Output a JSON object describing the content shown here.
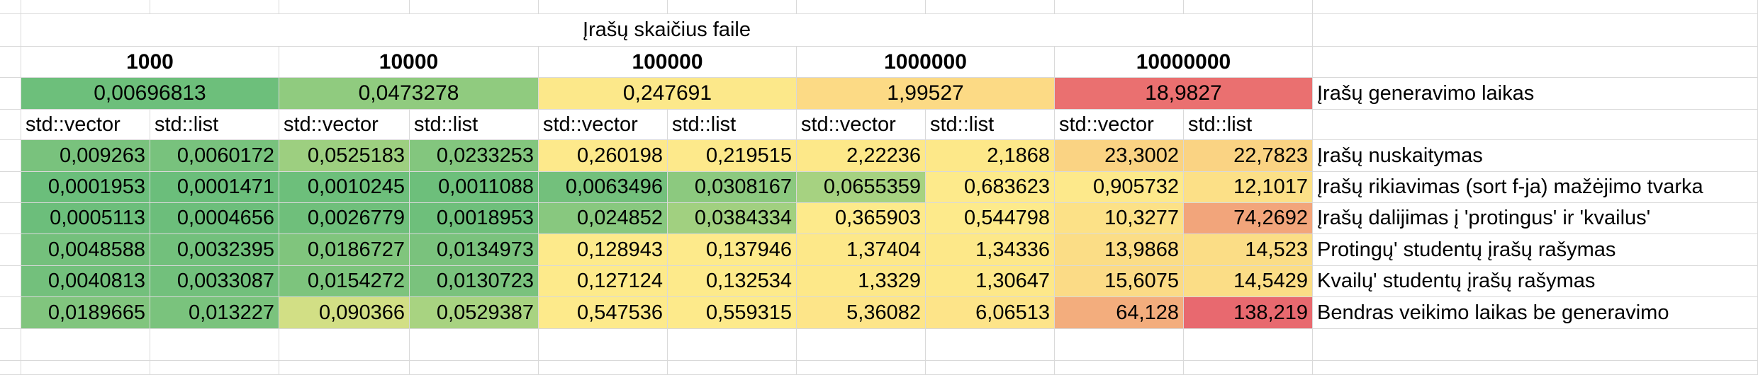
{
  "title": "Įrašų skaičius faile",
  "sizes": [
    "1000",
    "10000",
    "100000",
    "1000000",
    "10000000"
  ],
  "generation": {
    "label": "Įrašų generavimo laikas",
    "values": [
      "0,00696813",
      "0,0473278",
      "0,247691",
      "1,99527",
      "18,9827"
    ],
    "colors": [
      "#6dbf7b",
      "#90cb7f",
      "#fce88a",
      "#fcda85",
      "#ea7070"
    ]
  },
  "container_headers": [
    "std::vector",
    "std::list",
    "std::vector",
    "std::list",
    "std::vector",
    "std::list",
    "std::vector",
    "std::list",
    "std::vector",
    "std::list"
  ],
  "rows": [
    {
      "label": "Įrašų nuskaitymas",
      "values": [
        "0,009263",
        "0,0060172",
        "0,0525183",
        "0,0233253",
        "0,260198",
        "0,219515",
        "2,22236",
        "2,1868",
        "23,3002",
        "22,7823"
      ],
      "colors": [
        "#79c27d",
        "#78c27d",
        "#9dcf80",
        "#83c67e",
        "#fde98b",
        "#fde98b",
        "#fde889",
        "#fde889",
        "#fad383",
        "#fad383"
      ]
    },
    {
      "label": "Įrašų rikiavimas (sort f-ja) mažėjimo tvarka",
      "values": [
        "0,0001953",
        "0,0001471",
        "0,0010245",
        "0,0011088",
        "0,0063496",
        "0,0308167",
        "0,0655359",
        "0,683623",
        "0,905732",
        "12,1017"
      ],
      "colors": [
        "#6bbe7b",
        "#6bbe7b",
        "#6dbf7b",
        "#6dbf7b",
        "#73c07c",
        "#8cc97f",
        "#a6d281",
        "#fdea8b",
        "#fde98b",
        "#fce087"
      ]
    },
    {
      "label": "Įrašų dalijimas į 'protingus' ir 'kvailus'",
      "values": [
        "0,0005113",
        "0,0004656",
        "0,0026779",
        "0,0018953",
        "0,024852",
        "0,0384334",
        "0,365903",
        "0,544798",
        "10,3277",
        "74,2692"
      ],
      "colors": [
        "#6cbe7b",
        "#6cbe7b",
        "#6fbf7b",
        "#6ebf7b",
        "#88c87f",
        "#a1d080",
        "#fdea8b",
        "#fdea8b",
        "#fce187",
        "#f2a57b"
      ]
    },
    {
      "label": "Protingų' studentų įrašų rašymas",
      "values": [
        "0,0048588",
        "0,0032395",
        "0,0186727",
        "0,0134973",
        "0,128943",
        "0,137946",
        "1,37404",
        "1,34336",
        "13,9868",
        "14,523"
      ],
      "colors": [
        "#74c07c",
        "#72c07c",
        "#80c57d",
        "#7ac27d",
        "#fdea8b",
        "#fdea8b",
        "#fde889",
        "#fde889",
        "#fbdd86",
        "#fbdd86"
      ]
    },
    {
      "label": "Kvailų' studentų įrašų rašymas",
      "values": [
        "0,0040813",
        "0,0033087",
        "0,0154272",
        "0,0130723",
        "0,127124",
        "0,132534",
        "1,3329",
        "1,30647",
        "15,6075",
        "14,5429"
      ],
      "colors": [
        "#73c07c",
        "#72c07c",
        "#7dc47d",
        "#7ac27d",
        "#fdea8b",
        "#fdea8b",
        "#fde889",
        "#fde889",
        "#fbdb86",
        "#fbdd86"
      ]
    },
    {
      "label": "Bendras veikimo laikas be generavimo",
      "values": [
        "0,0189665",
        "0,013227",
        "0,090366",
        "0,0529387",
        "0,547536",
        "0,559315",
        "5,36082",
        "6,06513",
        "64,128",
        "138,219"
      ],
      "colors": [
        "#81c57e",
        "#7ac37d",
        "#d2df85",
        "#a8d381",
        "#fdea8b",
        "#fdea8b",
        "#fde589",
        "#fde489",
        "#f3ad7d",
        "#e8696f"
      ]
    }
  ]
}
